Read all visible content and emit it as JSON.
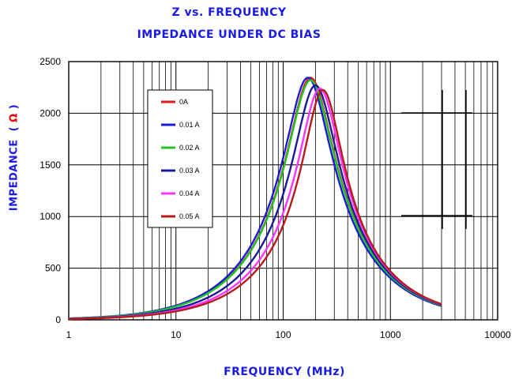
{
  "chart_data": {
    "type": "line",
    "title": "Z vs. FREQUENCY",
    "subtitle": "IMPEDANCE UNDER DC BIAS",
    "xlabel": "FREQUENCY (MHz)",
    "ylabel_text": "IMPEDANCE",
    "ylabel_open": "(",
    "ylabel_unit": "Ω",
    "ylabel_close": ")",
    "x_scale": "log",
    "xlim": [
      1,
      10000
    ],
    "ylim": [
      0,
      2500
    ],
    "x_ticks": [
      "1",
      "10",
      "100",
      "1000",
      "10000"
    ],
    "y_ticks": [
      "0",
      "500",
      "1000",
      "1500",
      "2000",
      "2500"
    ],
    "grid": true,
    "legend_position": "top-left",
    "series": [
      {
        "name": "0A",
        "color": "#e61a1a",
        "peak_freq": 180,
        "peak_z": 2345,
        "q": 1.0
      },
      {
        "name": "0.01 A",
        "color": "#1a1ad6",
        "peak_freq": 170,
        "peak_z": 2345,
        "q": 1.0
      },
      {
        "name": "0.02 A",
        "color": "#22c422",
        "peak_freq": 180,
        "peak_z": 2320,
        "q": 1.0
      },
      {
        "name": "0.03 A",
        "color": "#1a1a99",
        "peak_freq": 200,
        "peak_z": 2270,
        "q": 1.05
      },
      {
        "name": "0.04 A",
        "color": "#ff33ff",
        "peak_freq": 220,
        "peak_z": 2240,
        "q": 1.1
      },
      {
        "name": "0.05 A",
        "color": "#b31a1a",
        "peak_freq": 235,
        "peak_z": 2225,
        "q": 1.15
      }
    ]
  }
}
